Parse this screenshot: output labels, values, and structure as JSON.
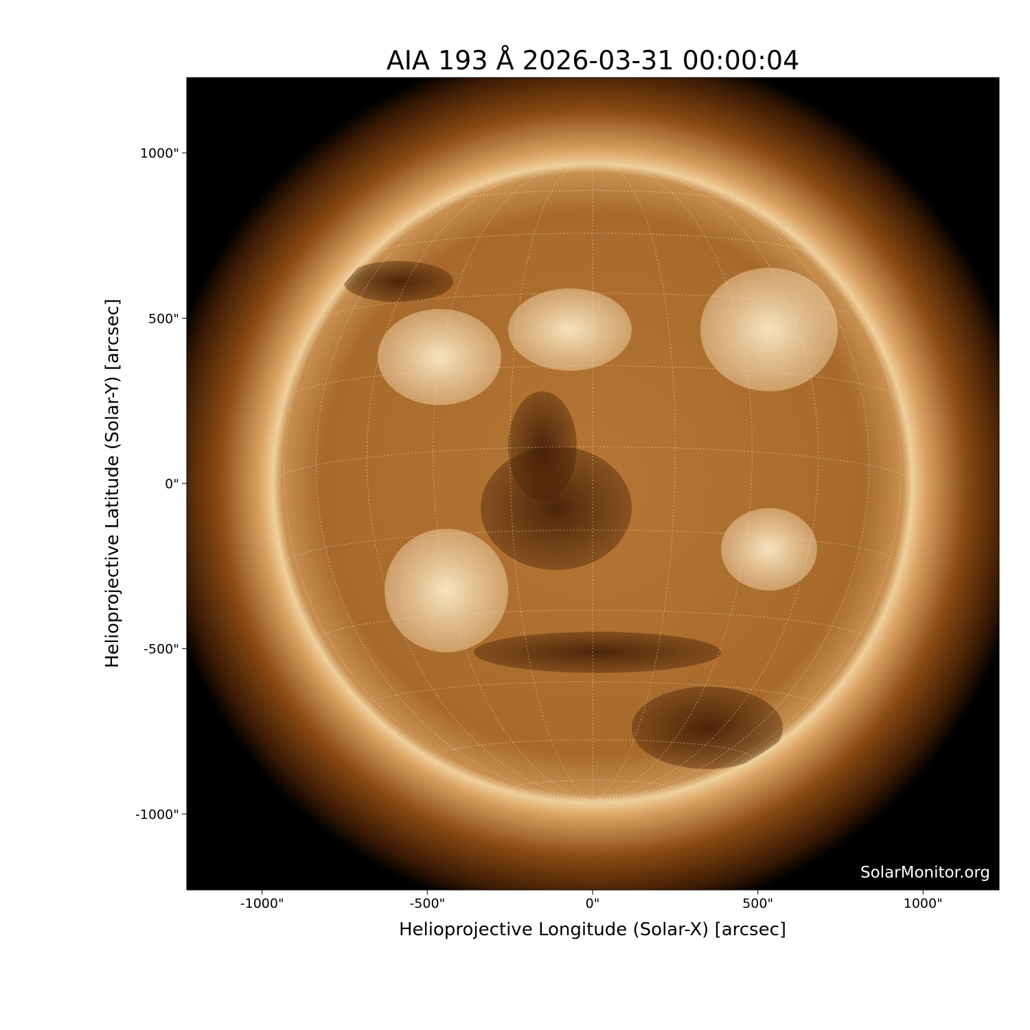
{
  "title": "AIA 193 Å 2026-03-31 00:00:04",
  "watermark": "SolarMonitor.org",
  "chart_data": {
    "type": "image",
    "title": "AIA 193 Å 2026-03-31 00:00:04",
    "xlabel": "Helioprojective Longitude (Solar-X) [arcsec]",
    "ylabel": "Helioprojective Latitude (Solar-Y) [arcsec]",
    "xlim": [
      -1228,
      1230
    ],
    "ylim": [
      -1230,
      1228
    ],
    "xticks": [
      {
        "value": -1000,
        "label": "-1000\""
      },
      {
        "value": -500,
        "label": "-500\""
      },
      {
        "value": 0,
        "label": "0\""
      },
      {
        "value": 500,
        "label": "500\""
      },
      {
        "value": 1000,
        "label": "1000\""
      }
    ],
    "yticks": [
      {
        "value": 1000,
        "label": "1000\""
      },
      {
        "value": 500,
        "label": "500\""
      },
      {
        "value": 0,
        "label": "0\""
      },
      {
        "value": -500,
        "label": "-500\""
      },
      {
        "value": -1000,
        "label": "-1000\""
      }
    ],
    "solar_radius_arcsec": 966,
    "grid": true,
    "colormap": [
      "#000000",
      "#5a2e08",
      "#a8641e",
      "#e0b070",
      "#fff4dc"
    ]
  }
}
